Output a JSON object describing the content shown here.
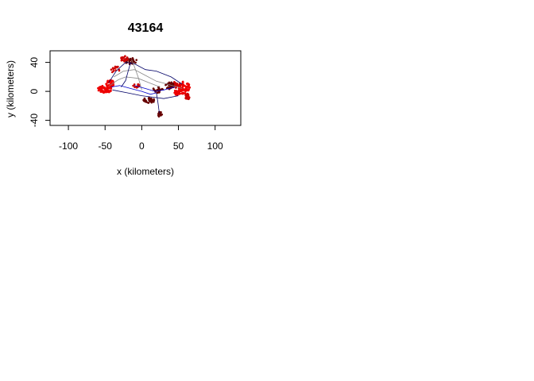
{
  "chart_data": {
    "type": "scatter",
    "title": "43164",
    "xlabel": "x (kilometers)",
    "ylabel": "y (kilometers)",
    "xlim": [
      -125,
      135
    ],
    "ylim": [
      -47,
      56
    ],
    "x_ticks": [
      -100,
      -50,
      0,
      50,
      100
    ],
    "y_ticks": [
      -40,
      0,
      40
    ],
    "x_tick_labels": [
      "-100",
      "-50",
      "0",
      "50",
      "100"
    ],
    "y_tick_labels": [
      "-40",
      "0",
      "40"
    ],
    "grid": false,
    "legend": "none",
    "colors": {
      "bright_red": "#ee0000",
      "red": "#cc0000",
      "dark_red": "#660000",
      "blue": "#0000cc",
      "navy": "#000066",
      "grey_line": "#888888"
    },
    "clusters": [
      {
        "color": "bright_red",
        "cx": -50,
        "cy": 3,
        "rx": 10,
        "ry": 5,
        "n": 80,
        "seed": 11
      },
      {
        "color": "bright_red",
        "cx": -43,
        "cy": 11,
        "rx": 6,
        "ry": 5,
        "n": 40,
        "seed": 12
      },
      {
        "color": "bright_red",
        "cx": 58,
        "cy": 5,
        "rx": 8,
        "ry": 9,
        "n": 70,
        "seed": 13
      },
      {
        "color": "red",
        "cx": 62,
        "cy": -8,
        "rx": 3,
        "ry": 5,
        "n": 20,
        "seed": 14
      },
      {
        "color": "red",
        "cx": 45,
        "cy": 9,
        "rx": 7,
        "ry": 4,
        "n": 35,
        "seed": 15
      },
      {
        "color": "dark_red",
        "cx": 38,
        "cy": 8,
        "rx": 6,
        "ry": 5,
        "n": 30,
        "seed": 16
      },
      {
        "color": "dark_red",
        "cx": -15,
        "cy": 42,
        "rx": 8,
        "ry": 5,
        "n": 30,
        "seed": 17
      },
      {
        "color": "red",
        "cx": -24,
        "cy": 45,
        "rx": 5,
        "ry": 4,
        "n": 20,
        "seed": 18
      },
      {
        "color": "dark_red",
        "cx": 10,
        "cy": -12,
        "rx": 8,
        "ry": 4,
        "n": 35,
        "seed": 19
      },
      {
        "color": "dark_red",
        "cx": 25,
        "cy": -33,
        "rx": 3,
        "ry": 5,
        "n": 15,
        "seed": 20
      },
      {
        "color": "red",
        "cx": -36,
        "cy": 30,
        "rx": 6,
        "ry": 5,
        "n": 15,
        "seed": 21
      },
      {
        "color": "dark_red",
        "cx": 22,
        "cy": 2,
        "rx": 7,
        "ry": 4,
        "n": 25,
        "seed": 22
      },
      {
        "color": "red",
        "cx": -8,
        "cy": 8,
        "rx": 5,
        "ry": 3,
        "n": 15,
        "seed": 23
      },
      {
        "color": "bright_red",
        "cx": 48,
        "cy": -2,
        "rx": 5,
        "ry": 4,
        "n": 25,
        "seed": 24
      }
    ],
    "tracks": [
      {
        "color": "blue",
        "points": [
          [
            -42,
            6
          ],
          [
            -30,
            8
          ],
          [
            -15,
            4
          ],
          [
            0,
            0
          ],
          [
            12,
            -4
          ],
          [
            20,
            -2
          ]
        ]
      },
      {
        "color": "navy",
        "points": [
          [
            -45,
            12
          ],
          [
            -35,
            28
          ],
          [
            -22,
            40
          ],
          [
            -10,
            38
          ],
          [
            5,
            30
          ],
          [
            20,
            28
          ],
          [
            40,
            20
          ],
          [
            55,
            10
          ]
        ]
      },
      {
        "color": "navy",
        "points": [
          [
            -40,
            2
          ],
          [
            -20,
            -2
          ],
          [
            0,
            -6
          ],
          [
            15,
            -8
          ],
          [
            30,
            -10
          ],
          [
            50,
            -6
          ]
        ]
      },
      {
        "color": "grey_line",
        "points": [
          [
            -38,
            20
          ],
          [
            -25,
            28
          ],
          [
            -10,
            30
          ],
          [
            5,
            22
          ],
          [
            20,
            14
          ],
          [
            35,
            10
          ],
          [
            55,
            4
          ]
        ]
      },
      {
        "color": "grey_line",
        "points": [
          [
            -44,
            8
          ],
          [
            -32,
            16
          ],
          [
            -22,
            20
          ],
          [
            -5,
            18
          ],
          [
            10,
            12
          ],
          [
            25,
            6
          ]
        ]
      },
      {
        "color": "navy",
        "points": [
          [
            -15,
            40
          ],
          [
            -18,
            30
          ],
          [
            -22,
            15
          ],
          [
            -28,
            6
          ]
        ]
      },
      {
        "color": "grey_line",
        "points": [
          [
            0,
            2
          ],
          [
            -5,
            20
          ],
          [
            -10,
            34
          ],
          [
            -14,
            44
          ]
        ]
      },
      {
        "color": "blue",
        "points": [
          [
            -10,
            8
          ],
          [
            5,
            4
          ],
          [
            18,
            0
          ],
          [
            30,
            2
          ],
          [
            45,
            6
          ]
        ]
      },
      {
        "color": "navy",
        "points": [
          [
            20,
            -2
          ],
          [
            22,
            -15
          ],
          [
            24,
            -30
          ]
        ]
      }
    ]
  }
}
